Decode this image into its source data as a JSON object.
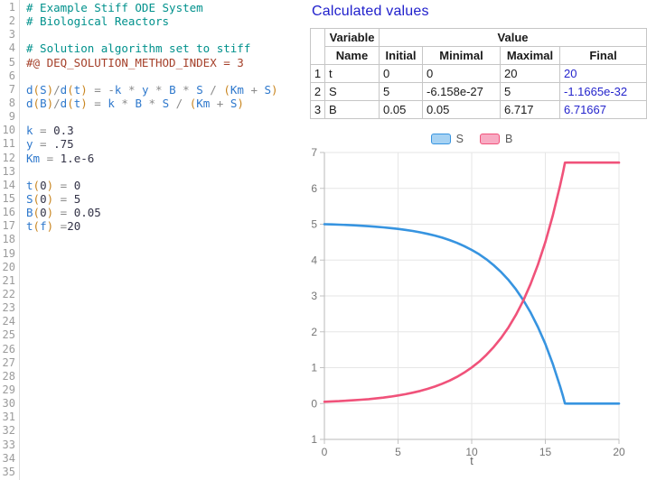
{
  "editor": {
    "gutter_line_count": 35,
    "token_colors": {
      "comment": "#00918c",
      "directive": "#a5402a",
      "var": "#2e78cc",
      "num": "#333347",
      "op": "#8a8a8a",
      "paren": "#c9851f",
      "plain": "#333333"
    },
    "lines": [
      {
        "n": 1,
        "tokens": [
          [
            "comment",
            "# Example Stiff ODE System"
          ]
        ]
      },
      {
        "n": 2,
        "tokens": [
          [
            "comment",
            "# Biological Reactors"
          ]
        ]
      },
      {
        "n": 4,
        "tokens": [
          [
            "comment",
            "# Solution algorithm set to stiff"
          ]
        ]
      },
      {
        "n": 5,
        "tokens": [
          [
            "directive",
            "#@ DEQ_SOLUTION_METHOD_INDEX = 3"
          ]
        ]
      },
      {
        "n": 7,
        "tokens": [
          [
            "var",
            "d"
          ],
          [
            "paren",
            "("
          ],
          [
            "var",
            "S"
          ],
          [
            "paren",
            ")"
          ],
          [
            "op",
            "/"
          ],
          [
            "var",
            "d"
          ],
          [
            "paren",
            "("
          ],
          [
            "var",
            "t"
          ],
          [
            "paren",
            ")"
          ],
          [
            "op",
            " = -"
          ],
          [
            "var",
            "k"
          ],
          [
            "op",
            " * "
          ],
          [
            "var",
            "y"
          ],
          [
            "op",
            " * "
          ],
          [
            "var",
            "B"
          ],
          [
            "op",
            " * "
          ],
          [
            "var",
            "S"
          ],
          [
            "op",
            " / "
          ],
          [
            "paren",
            "("
          ],
          [
            "var",
            "Km"
          ],
          [
            "op",
            " + "
          ],
          [
            "var",
            "S"
          ],
          [
            "paren",
            ")"
          ]
        ]
      },
      {
        "n": 8,
        "tokens": [
          [
            "var",
            "d"
          ],
          [
            "paren",
            "("
          ],
          [
            "var",
            "B"
          ],
          [
            "paren",
            ")"
          ],
          [
            "op",
            "/"
          ],
          [
            "var",
            "d"
          ],
          [
            "paren",
            "("
          ],
          [
            "var",
            "t"
          ],
          [
            "paren",
            ")"
          ],
          [
            "op",
            " = "
          ],
          [
            "var",
            "k"
          ],
          [
            "op",
            " * "
          ],
          [
            "var",
            "B"
          ],
          [
            "op",
            " * "
          ],
          [
            "var",
            "S"
          ],
          [
            "op",
            " / "
          ],
          [
            "paren",
            "("
          ],
          [
            "var",
            "Km"
          ],
          [
            "op",
            " + "
          ],
          [
            "var",
            "S"
          ],
          [
            "paren",
            ")"
          ]
        ]
      },
      {
        "n": 10,
        "tokens": [
          [
            "var",
            "k"
          ],
          [
            "op",
            " = "
          ],
          [
            "num",
            "0.3"
          ]
        ]
      },
      {
        "n": 11,
        "tokens": [
          [
            "var",
            "y"
          ],
          [
            "op",
            " = "
          ],
          [
            "num",
            ".75"
          ]
        ]
      },
      {
        "n": 12,
        "tokens": [
          [
            "var",
            "Km"
          ],
          [
            "op",
            " = "
          ],
          [
            "num",
            "1.e-6"
          ]
        ]
      },
      {
        "n": 14,
        "tokens": [
          [
            "var",
            "t"
          ],
          [
            "paren",
            "("
          ],
          [
            "num",
            "0"
          ],
          [
            "paren",
            ")"
          ],
          [
            "op",
            " = "
          ],
          [
            "num",
            "0"
          ]
        ]
      },
      {
        "n": 15,
        "tokens": [
          [
            "var",
            "S"
          ],
          [
            "paren",
            "("
          ],
          [
            "num",
            "0"
          ],
          [
            "paren",
            ")"
          ],
          [
            "op",
            " = "
          ],
          [
            "num",
            "5"
          ]
        ]
      },
      {
        "n": 16,
        "tokens": [
          [
            "var",
            "B"
          ],
          [
            "paren",
            "("
          ],
          [
            "num",
            "0"
          ],
          [
            "paren",
            ")"
          ],
          [
            "op",
            " = "
          ],
          [
            "num",
            "0.05"
          ]
        ]
      },
      {
        "n": 17,
        "tokens": [
          [
            "var",
            "t"
          ],
          [
            "paren",
            "("
          ],
          [
            "var",
            "f"
          ],
          [
            "paren",
            ")"
          ],
          [
            "op",
            " ="
          ],
          [
            "num",
            "20"
          ]
        ]
      }
    ]
  },
  "results": {
    "title": "Calculated values",
    "title_color": "#2020cc"
  },
  "table": {
    "headers": {
      "variable": "Variable",
      "value": "Value",
      "name": "Name",
      "initial": "Initial",
      "minimal": "Minimal",
      "maximal": "Maximal",
      "final": "Final"
    },
    "final_color": "#2424cc",
    "rows": [
      {
        "index": "1",
        "name": "t",
        "initial": "0",
        "minimal": "0",
        "maximal": "20",
        "final": "20"
      },
      {
        "index": "2",
        "name": "S",
        "initial": "5",
        "minimal": "-6.158e-27",
        "maximal": "5",
        "final": "-1.1665e-32"
      },
      {
        "index": "3",
        "name": "B",
        "initial": "0.05",
        "minimal": "0.05",
        "maximal": "6.717",
        "final": "6.71667"
      }
    ]
  },
  "chart_data": {
    "type": "line",
    "title": "",
    "xlabel": "t",
    "ylabel": "",
    "xlim": [
      0,
      20
    ],
    "ylim": [
      -1,
      7
    ],
    "x_ticks": [
      0,
      5,
      10,
      15,
      20
    ],
    "y_ticks": [
      -1,
      0,
      1,
      2,
      3,
      4,
      5,
      6,
      7
    ],
    "grid": true,
    "legend_position": "top",
    "grid_color": "#e6e6e6",
    "axis_color": "#b8b8b8",
    "tick_color": "#c2c2c2",
    "tick_label_color": "#757575",
    "x": [
      0,
      0.5,
      1,
      1.5,
      2,
      2.5,
      3,
      3.5,
      4,
      4.5,
      5,
      5.5,
      6,
      6.5,
      7,
      7.5,
      8,
      8.5,
      9,
      9.5,
      10,
      10.5,
      11,
      11.5,
      12,
      12.5,
      13,
      13.5,
      14,
      14.5,
      15,
      15.5,
      16,
      16.2,
      16.33,
      16.5,
      17,
      18,
      19,
      20
    ],
    "series": [
      {
        "name": "S",
        "color": "#3794e0",
        "fill": "#a6d2f3",
        "values": [
          5,
          4.994,
          4.987,
          4.979,
          4.969,
          4.958,
          4.945,
          4.93,
          4.913,
          4.893,
          4.869,
          4.842,
          4.811,
          4.774,
          4.731,
          4.682,
          4.624,
          4.557,
          4.48,
          4.389,
          4.284,
          4.162,
          4.021,
          3.856,
          3.665,
          3.443,
          3.185,
          2.885,
          2.537,
          2.132,
          1.662,
          1.116,
          0.481,
          0.199,
          0.002,
          0,
          0,
          0,
          0,
          0
        ]
      },
      {
        "name": "B",
        "color": "#f0527a",
        "fill": "#f8abc3",
        "values": [
          0.05,
          0.058,
          0.067,
          0.078,
          0.091,
          0.106,
          0.123,
          0.143,
          0.166,
          0.193,
          0.224,
          0.26,
          0.302,
          0.351,
          0.408,
          0.474,
          0.551,
          0.64,
          0.744,
          0.864,
          1.004,
          1.167,
          1.356,
          1.575,
          1.83,
          2.126,
          2.47,
          2.87,
          3.334,
          3.874,
          4.501,
          5.229,
          6.076,
          6.451,
          6.715,
          6.717,
          6.717,
          6.717,
          6.717,
          6.717
        ]
      }
    ]
  }
}
